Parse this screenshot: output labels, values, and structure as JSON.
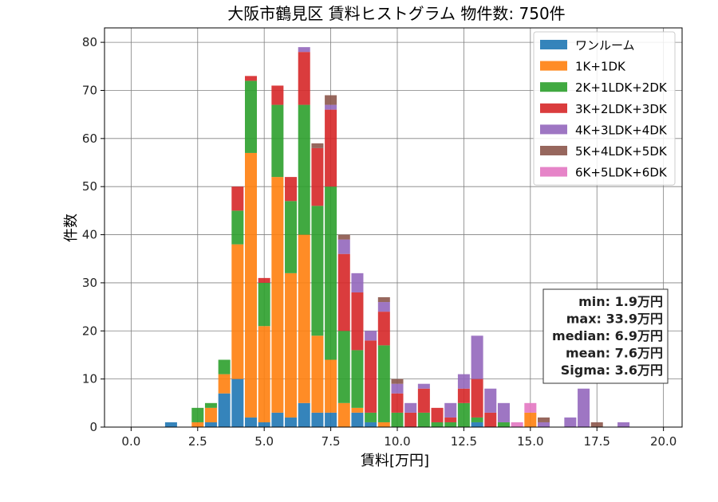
{
  "chart_data": {
    "type": "bar",
    "title": "大阪市鶴見区 賃料ヒストグラム 物件数: 750件",
    "xlabel": "賃料[万円]",
    "ylabel": "件数",
    "xlim": [
      -1.0,
      20.7
    ],
    "ylim": [
      0,
      83
    ],
    "xticks": [
      0.0,
      2.5,
      5.0,
      7.5,
      10.0,
      12.5,
      15.0,
      17.5,
      20.0
    ],
    "xtick_labels": [
      "0.0",
      "2.5",
      "5.0",
      "7.5",
      "10.0",
      "12.5",
      "15.0",
      "17.5",
      "20.0"
    ],
    "yticks": [
      0,
      10,
      20,
      30,
      40,
      50,
      60,
      70,
      80
    ],
    "ytick_labels": [
      "0",
      "10",
      "20",
      "30",
      "40",
      "50",
      "60",
      "70",
      "80"
    ],
    "grid": true,
    "legend_position": "top-right",
    "stacked": true,
    "bin_width": 0.5,
    "bin_centers": [
      1.5,
      2.5,
      3.0,
      3.5,
      4.0,
      4.5,
      5.0,
      5.5,
      6.0,
      6.5,
      7.0,
      7.5,
      8.0,
      8.5,
      9.0,
      9.5,
      10.0,
      10.5,
      11.0,
      11.5,
      12.0,
      12.5,
      13.0,
      13.5,
      14.0,
      14.5,
      15.0,
      15.5,
      16.0,
      16.5,
      17.0,
      17.5,
      18.0,
      18.5
    ],
    "series": [
      {
        "name": "ワンルーム",
        "color": "#1f77b4",
        "values": [
          1,
          0,
          1,
          7,
          10,
          2,
          1,
          3,
          2,
          5,
          3,
          3,
          0,
          3,
          1,
          0,
          0,
          0,
          0,
          0,
          0,
          0,
          1,
          0,
          0,
          0,
          0,
          0,
          0,
          0,
          0,
          0,
          0,
          0
        ]
      },
      {
        "name": "1K+1DK",
        "color": "#ff7f0e",
        "values": [
          0,
          1,
          3,
          4,
          28,
          55,
          20,
          49,
          30,
          35,
          16,
          11,
          5,
          1,
          0,
          1,
          0,
          0,
          0,
          0,
          0,
          0,
          0,
          0,
          0,
          0,
          3,
          0,
          0,
          0,
          0,
          0,
          0,
          0
        ]
      },
      {
        "name": "2K+1LDK+2DK",
        "color": "#2ca02c",
        "values": [
          0,
          3,
          1,
          3,
          7,
          15,
          9,
          15,
          15,
          27,
          27,
          36,
          15,
          12,
          2,
          16,
          3,
          0,
          3,
          1,
          1,
          5,
          1,
          0,
          1,
          0,
          0,
          0,
          0,
          0,
          0,
          0,
          0,
          0
        ]
      },
      {
        "name": "3K+2LDK+3DK",
        "color": "#d62728",
        "values": [
          0,
          0,
          0,
          0,
          5,
          1,
          1,
          4,
          5,
          11,
          12,
          16,
          16,
          12,
          15,
          7,
          4,
          3,
          5,
          3,
          1,
          3,
          8,
          3,
          0,
          0,
          0,
          0,
          0,
          0,
          0,
          0,
          0,
          0
        ]
      },
      {
        "name": "4K+3LDK+4DK",
        "color": "#9467bd",
        "values": [
          0,
          0,
          0,
          0,
          0,
          0,
          0,
          0,
          0,
          1,
          0,
          1,
          3,
          4,
          2,
          2,
          2,
          2,
          1,
          0,
          3,
          3,
          9,
          5,
          4,
          0,
          0,
          1,
          0,
          2,
          8,
          0,
          0,
          1
        ]
      },
      {
        "name": "5K+4LDK+5DK",
        "color": "#8c564b",
        "values": [
          0,
          0,
          0,
          0,
          0,
          0,
          0,
          0,
          0,
          0,
          1,
          2,
          1,
          0,
          0,
          1,
          1,
          0,
          0,
          0,
          0,
          0,
          0,
          0,
          0,
          0,
          0,
          1,
          0,
          0,
          0,
          1,
          0,
          0
        ]
      },
      {
        "name": "6K+5LDK+6DK",
        "color": "#e377c2",
        "values": [
          0,
          0,
          0,
          0,
          0,
          0,
          0,
          0,
          0,
          0,
          0,
          0,
          0,
          0,
          0,
          0,
          0,
          0,
          0,
          0,
          0,
          0,
          0,
          0,
          0,
          1,
          2,
          0,
          0,
          0,
          0,
          0,
          0,
          0
        ]
      }
    ],
    "stats_box": [
      "min: 1.9万円",
      "max: 33.9万円",
      "median: 6.9万円",
      "mean: 7.6万円",
      "Sigma: 3.6万円"
    ]
  }
}
